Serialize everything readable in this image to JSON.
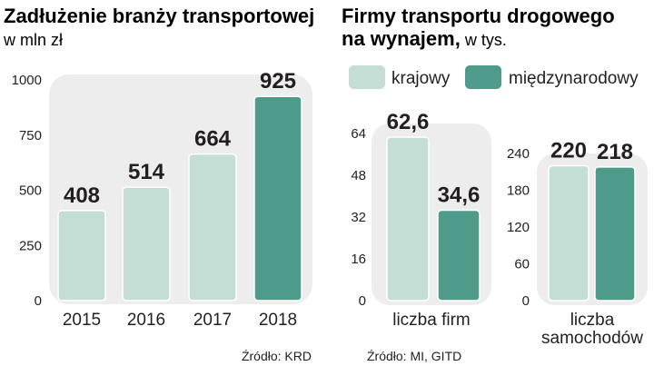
{
  "colors": {
    "domestic": "#c5ded5",
    "international": "#4e9b8a",
    "panel": "#ededed",
    "text": "#231f20"
  },
  "chart_data": [
    {
      "type": "bar",
      "title": "Zadłużenie branży transportowej",
      "subtitle": "w mln zł",
      "categories": [
        "2015",
        "2016",
        "2017",
        "2018"
      ],
      "values": [
        408,
        514,
        664,
        925
      ],
      "value_labels": [
        "408",
        "514",
        "664",
        "925"
      ],
      "highlight_index": 3,
      "yticks": [
        "0",
        "250",
        "500",
        "750",
        "1000"
      ],
      "ylim": [
        0,
        1000
      ],
      "source": "Źródło: KRD"
    },
    {
      "type": "bar",
      "title_bold": "Firmy transportu drogowego",
      "title_line2_bold": "na wynajem,",
      "title_line2_normal": " w tys.",
      "legend": [
        "krajowy",
        "międzynarodowy"
      ],
      "source": "Źródło: MI, GITD",
      "panels": [
        {
          "category": "liczba firm",
          "series": [
            {
              "name": "krajowy",
              "value": 62.6,
              "label": "62,6"
            },
            {
              "name": "międzynarodowy",
              "value": 34.6,
              "label": "34,6"
            }
          ],
          "yticks": [
            "0",
            "16",
            "32",
            "48",
            "64"
          ],
          "ylim": [
            0,
            64
          ]
        },
        {
          "category_lines": [
            "liczba",
            "samochodów"
          ],
          "series": [
            {
              "name": "krajowy",
              "value": 220,
              "label": "220"
            },
            {
              "name": "międzynarodowy",
              "value": 218,
              "label": "218"
            }
          ],
          "yticks": [
            "0",
            "60",
            "120",
            "180",
            "240"
          ],
          "ylim": [
            0,
            240
          ]
        }
      ]
    }
  ]
}
